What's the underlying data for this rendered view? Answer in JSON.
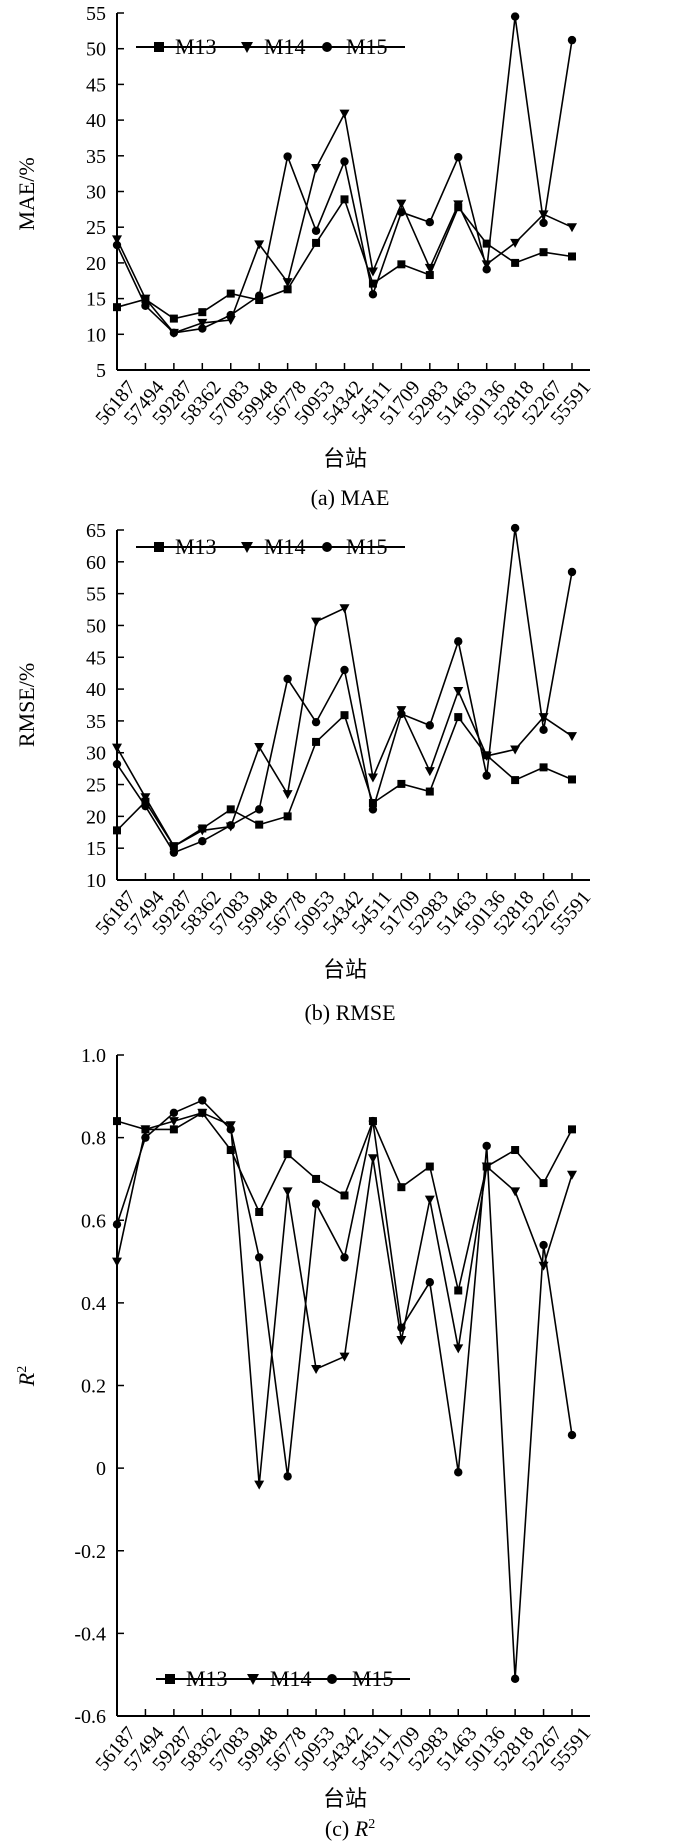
{
  "figure": {
    "xlabel": "台站",
    "stations": [
      "56187",
      "57494",
      "59287",
      "58362",
      "57083",
      "59948",
      "56778",
      "50953",
      "54342",
      "54511",
      "51709",
      "52983",
      "51463",
      "50136",
      "52818",
      "52267",
      "55591"
    ]
  },
  "chart_data": [
    {
      "type": "line",
      "id": "mae",
      "caption": "(a) MAE",
      "ylabel": "MAE/%",
      "xlabel": "台站",
      "ylim": [
        5,
        55
      ],
      "yticks": [
        "5",
        "10",
        "15",
        "20",
        "25",
        "30",
        "35",
        "40",
        "45",
        "50",
        "55"
      ],
      "yticks_values": [
        5,
        10,
        15,
        20,
        25,
        30,
        35,
        40,
        45,
        50,
        55
      ],
      "legend_position": "top-left",
      "categories": [
        "56187",
        "57494",
        "59287",
        "58362",
        "57083",
        "59948",
        "56778",
        "50953",
        "54342",
        "54511",
        "51709",
        "52983",
        "51463",
        "50136",
        "52818",
        "52267",
        "55591"
      ],
      "series": [
        {
          "name": "M13",
          "marker": "square",
          "values": [
            13.8,
            14.9,
            12.2,
            13.1,
            15.7,
            14.8,
            16.3,
            22.8,
            28.9,
            17.1,
            19.8,
            18.3,
            27.8,
            22.7,
            20.0,
            21.5,
            20.9
          ]
        },
        {
          "name": "M14",
          "marker": "triangle",
          "values": [
            23.3,
            15.0,
            10.2,
            11.6,
            12.0,
            22.6,
            17.3,
            33.3,
            40.9,
            18.8,
            28.3,
            19.3,
            28.2,
            19.8,
            22.8,
            26.8,
            25.0
          ]
        },
        {
          "name": "M15",
          "marker": "circle",
          "values": [
            22.5,
            14.0,
            10.2,
            10.8,
            12.7,
            15.4,
            34.9,
            24.5,
            34.2,
            15.6,
            27.1,
            25.7,
            34.8,
            19.1,
            54.5,
            25.6,
            51.2
          ]
        }
      ]
    },
    {
      "type": "line",
      "id": "rmse",
      "caption": "(b) RMSE",
      "ylabel": "RMSE/%",
      "xlabel": "台站",
      "ylim": [
        10,
        65
      ],
      "yticks": [
        "10",
        "15",
        "20",
        "25",
        "30",
        "35",
        "40",
        "45",
        "50",
        "55",
        "60",
        "65"
      ],
      "yticks_values": [
        10,
        15,
        20,
        25,
        30,
        35,
        40,
        45,
        50,
        55,
        60,
        65
      ],
      "legend_position": "top-left",
      "categories": [
        "56187",
        "57494",
        "59287",
        "58362",
        "57083",
        "59948",
        "56778",
        "50953",
        "54342",
        "54511",
        "51709",
        "52983",
        "51463",
        "50136",
        "52818",
        "52267",
        "55591"
      ],
      "series": [
        {
          "name": "M13",
          "marker": "square",
          "values": [
            17.8,
            22.3,
            15.3,
            18.1,
            21.1,
            18.7,
            20.0,
            31.7,
            35.9,
            22.1,
            25.1,
            23.9,
            35.6,
            29.6,
            25.7,
            27.7,
            25.8
          ]
        },
        {
          "name": "M14",
          "marker": "triangle",
          "values": [
            30.8,
            23.0,
            15.3,
            17.8,
            18.4,
            30.9,
            23.5,
            50.6,
            52.7,
            26.1,
            36.7,
            27.1,
            39.7,
            29.5,
            30.5,
            35.6,
            32.6
          ]
        },
        {
          "name": "M15",
          "marker": "circle",
          "values": [
            28.2,
            21.6,
            14.3,
            16.1,
            18.6,
            21.1,
            41.6,
            34.8,
            43.0,
            21.1,
            36.1,
            34.3,
            47.5,
            26.4,
            65.3,
            33.6,
            58.4
          ]
        }
      ]
    },
    {
      "type": "line",
      "id": "r2",
      "caption_prefix": "(c) ",
      "caption_symbol": "R",
      "caption_sup": "2",
      "ylabel_symbol": "R",
      "ylabel_sup": "2",
      "xlabel": "台站",
      "ylim": [
        -0.6,
        1.0
      ],
      "yticks": [
        "-0.6",
        "-0.4",
        "-0.2",
        "0",
        "0.2",
        "0.4",
        "0.6",
        "0.8",
        "1.0"
      ],
      "yticks_values": [
        -0.6,
        -0.4,
        -0.2,
        0,
        0.2,
        0.4,
        0.6,
        0.8,
        1.0
      ],
      "legend_position": "bottom-left",
      "categories": [
        "56187",
        "57494",
        "59287",
        "58362",
        "57083",
        "59948",
        "56778",
        "50953",
        "54342",
        "54511",
        "51709",
        "52983",
        "51463",
        "50136",
        "52818",
        "52267",
        "55591"
      ],
      "series": [
        {
          "name": "M13",
          "marker": "square",
          "values": [
            0.84,
            0.82,
            0.82,
            0.86,
            0.77,
            0.62,
            0.76,
            0.7,
            0.66,
            0.84,
            0.68,
            0.73,
            0.43,
            0.73,
            0.77,
            0.69,
            0.82
          ]
        },
        {
          "name": "M14",
          "marker": "triangle",
          "values": [
            0.5,
            0.82,
            0.84,
            0.86,
            0.83,
            -0.04,
            0.67,
            0.24,
            0.27,
            0.75,
            0.31,
            0.65,
            0.29,
            0.73,
            0.67,
            0.49,
            0.71
          ]
        },
        {
          "name": "M15",
          "marker": "circle",
          "values": [
            0.59,
            0.8,
            0.86,
            0.89,
            0.82,
            0.51,
            -0.02,
            0.64,
            0.51,
            0.84,
            0.34,
            0.45,
            -0.01,
            0.78,
            -0.51,
            0.54,
            0.08
          ]
        }
      ]
    }
  ]
}
